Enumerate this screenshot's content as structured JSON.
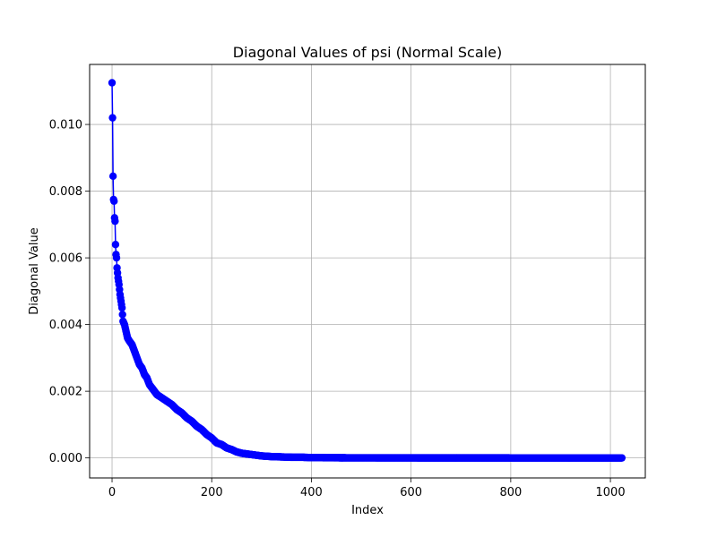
{
  "chart_data": {
    "type": "line",
    "title": "Diagonal Values of psi (Normal Scale)",
    "xlabel": "Index",
    "ylabel": "Diagonal Value",
    "xlim": [
      -45,
      1070
    ],
    "ylim": [
      -0.0006,
      0.0118
    ],
    "xticks": [
      0,
      200,
      400,
      600,
      800,
      1000
    ],
    "yticks": [
      0.0,
      0.002,
      0.004,
      0.006,
      0.008,
      0.01
    ],
    "xtick_labels": [
      "0",
      "200",
      "400",
      "600",
      "800",
      "1000"
    ],
    "ytick_labels": [
      "0.000",
      "0.002",
      "0.004",
      "0.006",
      "0.008",
      "0.010"
    ],
    "grid": true,
    "legend": "none",
    "series": [
      {
        "color": "#0000ff",
        "marker": "circle",
        "x": [
          0,
          1,
          2,
          3,
          4,
          5,
          6,
          7,
          8,
          9,
          10,
          12,
          14,
          16,
          18,
          20,
          22,
          25,
          28,
          31,
          35,
          40,
          45,
          50,
          55,
          60,
          65,
          70,
          75,
          80,
          90,
          100,
          110,
          120,
          130,
          140,
          150,
          160,
          170,
          180,
          190,
          200,
          210,
          220,
          230,
          240,
          250,
          260,
          270,
          280,
          290,
          300,
          320,
          340,
          360,
          380,
          400,
          420,
          440,
          460,
          480,
          500,
          550,
          600,
          650,
          700,
          750,
          800,
          850,
          900,
          950,
          1000,
          1023
        ],
        "y": [
          0.01125,
          0.0102,
          0.00845,
          0.00775,
          0.0077,
          0.0072,
          0.0071,
          0.0064,
          0.0061,
          0.006,
          0.0057,
          0.0054,
          0.0052,
          0.0049,
          0.0047,
          0.0045,
          0.0041,
          0.004,
          0.0038,
          0.0036,
          0.0035,
          0.0034,
          0.0032,
          0.003,
          0.0028,
          0.0027,
          0.0025,
          0.0024,
          0.0022,
          0.0021,
          0.0019,
          0.0018,
          0.0017,
          0.0016,
          0.00145,
          0.00135,
          0.0012,
          0.0011,
          0.00095,
          0.00085,
          0.0007,
          0.0006,
          0.00045,
          0.0004,
          0.0003,
          0.00025,
          0.00018,
          0.00014,
          0.00012,
          0.0001,
          8e-05,
          6e-05,
          4e-05,
          3e-05,
          2e-05,
          2e-05,
          1e-05,
          8e-06,
          5e-06,
          4e-06,
          3e-06,
          2e-06,
          1e-06,
          1e-06,
          5e-07,
          5e-07,
          3e-07,
          2e-07,
          2e-07,
          1e-07,
          1e-07,
          1e-07,
          1e-07
        ]
      }
    ]
  }
}
